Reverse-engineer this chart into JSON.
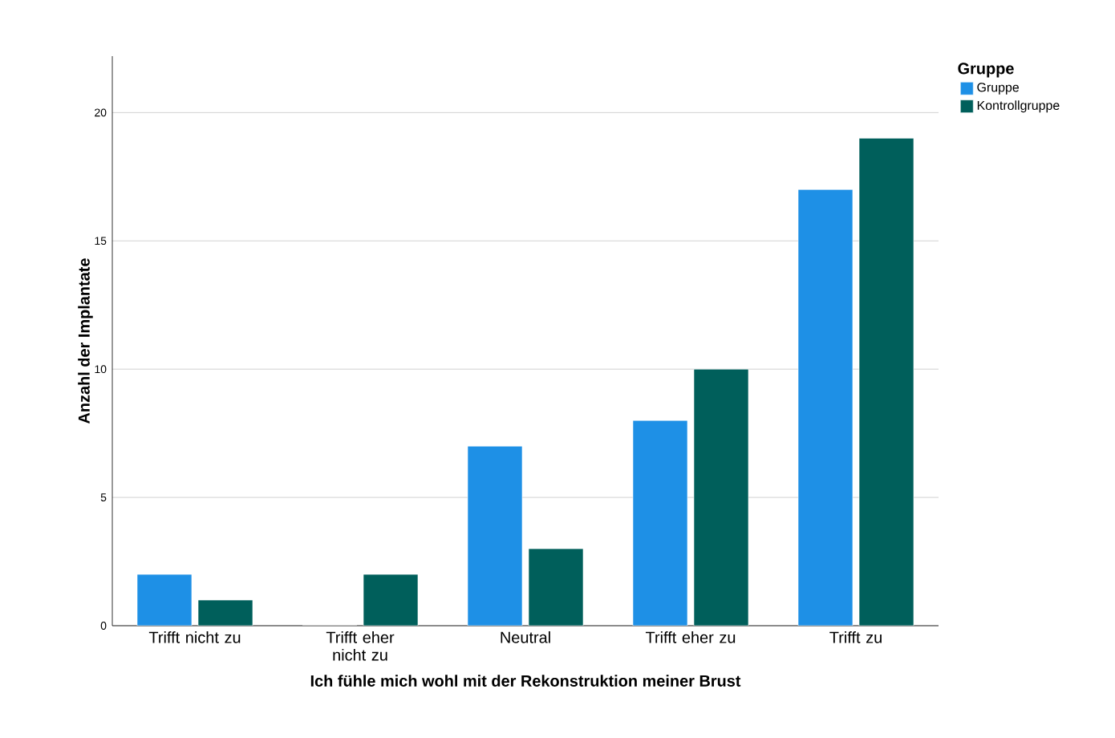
{
  "chart_data": {
    "type": "bar",
    "xlabel": "Ich fühle mich wohl mit der Rekonstruktion meiner Brust",
    "ylabel": "Anzahl der Implantate",
    "legend_title": "Gruppe",
    "categories": [
      "Trifft nicht zu",
      "Trifft eher nicht zu",
      "Neutral",
      "Trifft eher zu",
      "Trifft zu"
    ],
    "series": [
      {
        "name": "Gruppe",
        "color": "#1e90e6",
        "values": [
          2,
          0,
          7,
          8,
          17
        ]
      },
      {
        "name": "Kontrollgruppe",
        "color": "#005f5b",
        "values": [
          1,
          2,
          3,
          10,
          19
        ]
      }
    ],
    "ylim": [
      0,
      22.2
    ],
    "yticks": [
      0,
      5,
      10,
      15,
      20
    ],
    "grid": "y",
    "legend": "top right"
  }
}
